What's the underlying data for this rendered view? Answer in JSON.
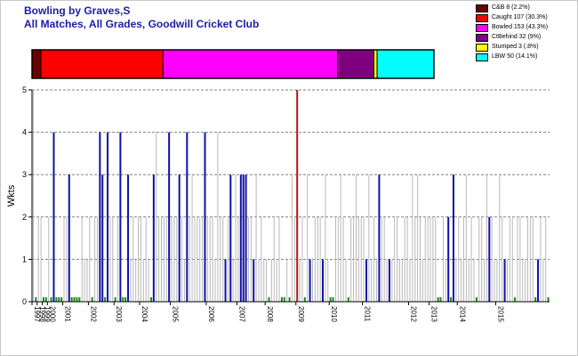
{
  "chart_data": {
    "type": "bar",
    "title": "Bowling by Graves,S",
    "subtitle": "All Matches, All Grades, Goodwill Cricket Club",
    "ylabel": "Wkts",
    "ylim": [
      0,
      5
    ],
    "y_ticks": [
      "0",
      "1",
      "2",
      "3",
      "4",
      "5"
    ],
    "grid": "horizontal dashed",
    "legend_position": "top-right",
    "colors": {
      "default": "#b8b8b8",
      "highlight": "#1010a8",
      "best": "#b01818",
      "zero": "#1a8a1a"
    },
    "dismissals": [
      {
        "label": "C&B 8 (2.2%)",
        "share": 2.2,
        "color": "#6e0000"
      },
      {
        "label": "Caught 107 (30.3%)",
        "share": 30.3,
        "color": "#ff0000"
      },
      {
        "label": "Bowled 153 (43.3%)",
        "share": 43.3,
        "color": "#ff00ff"
      },
      {
        "label": "CtBehind 32 (9%)",
        "share": 9.0,
        "color": "#7f007f"
      },
      {
        "label": "Stumped 3 (.8%)",
        "share": 0.8,
        "color": "#ffff00"
      },
      {
        "label": "LBW 50 (14.1%)",
        "share": 14.1,
        "color": "#00ffff"
      }
    ],
    "years": [
      "1997",
      "1998",
      "1999",
      "2000",
      "2001",
      "2002",
      "2003",
      "2004",
      "2005",
      "2006",
      "2007",
      "2008",
      "2009",
      "2010",
      "2011",
      "2012",
      "2013",
      "2014",
      "2015"
    ],
    "year_starts": [
      0,
      2,
      4,
      6,
      12,
      22,
      32,
      42,
      54,
      68,
      80,
      91,
      103,
      116,
      129,
      147,
      155,
      166,
      181
    ],
    "values": [
      5,
      0,
      2,
      2,
      0,
      0,
      2,
      0,
      4,
      0,
      0,
      0,
      2,
      2,
      3,
      0,
      0,
      0,
      0,
      2,
      1,
      1,
      2,
      0,
      2,
      2,
      4,
      3,
      0,
      4,
      2,
      2,
      0,
      2,
      4,
      0,
      0,
      3,
      1,
      2,
      1,
      2,
      2,
      1,
      2,
      1,
      0,
      3,
      4,
      2,
      2,
      2,
      2,
      4,
      2,
      2,
      2,
      3,
      2,
      1,
      4,
      2,
      3,
      2,
      2,
      2,
      2,
      4,
      2,
      2,
      2,
      1,
      4,
      2,
      2,
      1,
      2,
      3,
      1,
      3,
      2,
      3,
      3,
      3,
      2,
      2,
      1,
      3,
      1,
      2,
      1,
      1,
      0,
      1,
      2,
      1,
      2,
      0,
      0,
      1,
      0,
      3,
      2,
      5,
      1,
      2,
      0,
      3,
      1,
      1,
      2,
      2,
      2,
      1,
      3,
      1,
      0,
      0,
      2,
      2,
      3,
      2,
      1,
      0,
      2,
      2,
      3,
      2,
      2,
      2,
      1,
      3,
      1,
      2,
      1,
      3,
      2,
      2,
      1,
      1,
      1,
      2,
      2,
      1,
      1,
      2,
      2,
      1,
      3,
      2,
      3,
      2,
      1,
      2,
      2,
      2,
      2,
      2,
      0,
      0,
      2,
      1,
      2,
      0,
      3,
      1,
      2,
      1,
      2,
      3,
      1,
      2,
      1,
      0,
      2,
      2,
      1,
      3,
      2,
      2,
      1,
      1,
      3,
      2,
      1,
      1,
      2,
      2,
      0,
      2,
      2,
      1,
      1,
      2,
      2,
      2,
      0,
      1,
      2,
      1,
      2,
      0
    ],
    "highlight_indices": [
      8,
      14,
      26,
      27,
      29,
      34,
      37,
      47,
      53,
      57,
      60,
      67,
      75,
      77,
      81,
      82,
      83,
      86,
      108,
      113,
      123,
      130,
      135,
      139,
      162,
      164,
      178,
      184,
      197
    ],
    "best_index": 103
  }
}
